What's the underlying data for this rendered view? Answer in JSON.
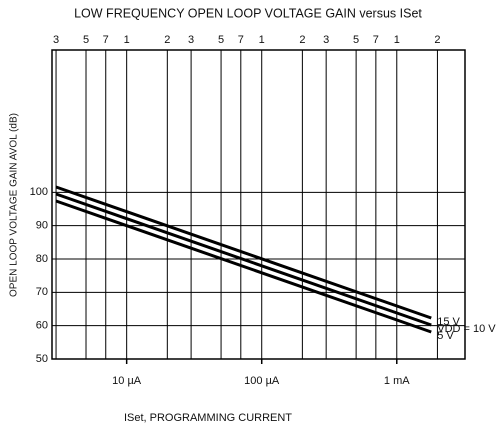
{
  "chart_data": {
    "type": "line",
    "title": "LOW FREQUENCY OPEN LOOP VOLTAGE GAIN versus ISet",
    "x_label": "ISet, PROGRAMMING CURRENT",
    "y_label": "OPEN LOOP VOLTAGE GAIN AVOL (dB)",
    "log_x": true,
    "grid": true,
    "xlim": [
      2.8e-06,
      0.0032
    ],
    "ylim": [
      50,
      140
    ],
    "yticks": [
      50,
      60,
      70,
      80,
      90,
      100
    ],
    "xticks": [
      {
        "value": 3e-06,
        "label": "3"
      },
      {
        "value": 5e-06,
        "label": "5"
      },
      {
        "value": 7e-06,
        "label": "7"
      },
      {
        "value": 1e-05,
        "label": "1"
      },
      {
        "value": 2e-05,
        "label": "2"
      },
      {
        "value": 3e-05,
        "label": "3"
      },
      {
        "value": 5e-05,
        "label": "5"
      },
      {
        "value": 7e-05,
        "label": "7"
      },
      {
        "value": 0.0001,
        "label": "1"
      },
      {
        "value": 0.0002,
        "label": "2"
      },
      {
        "value": 0.0003,
        "label": "3"
      },
      {
        "value": 0.0005,
        "label": "5"
      },
      {
        "value": 0.0007,
        "label": "7"
      },
      {
        "value": 0.001,
        "label": "1"
      },
      {
        "value": 0.002,
        "label": "2"
      }
    ],
    "x_unit_ticks": [
      {
        "value": 1e-05,
        "label": "10 µA"
      },
      {
        "value": 0.0001,
        "label": "100 µA"
      },
      {
        "value": 0.001,
        "label": "1 mA"
      }
    ],
    "x": [
      3e-06,
      0.0018
    ],
    "series": [
      {
        "name": "15 V",
        "color": "#000000",
        "values": [
          101.6,
          62.3
        ]
      },
      {
        "name": "VDD = 10 V",
        "color": "#000000",
        "values": [
          99.5,
          60.2
        ]
      },
      {
        "name": "5 V",
        "color": "#000000",
        "values": [
          97.4,
          58.1
        ]
      }
    ]
  }
}
